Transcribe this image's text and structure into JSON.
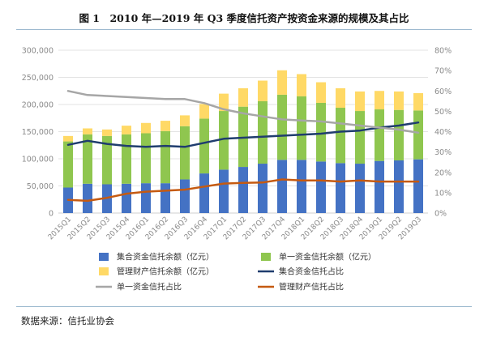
{
  "title": "图 1　2010 年—2019 年 Q3 季度信托资产按资金来源的规模及其占比",
  "source": "数据来源：信托业协会",
  "colors": {
    "collective": "#4472c4",
    "single": "#8fc64f",
    "management": "#ffd966",
    "collective_line": "#1f3d6e",
    "single_line": "#a6a6a6",
    "management_line": "#c55a11",
    "grid": "#e3e3e3"
  },
  "chart_data": {
    "type": "bar",
    "stacked": true,
    "categories": [
      "2015Q1",
      "2015Q2",
      "2015Q3",
      "2015Q4",
      "2016Q1",
      "2016Q2",
      "2016Q3",
      "2016Q4",
      "2017Q1",
      "2017Q2",
      "2017Q3",
      "2017Q4",
      "2018Q1",
      "2018Q2",
      "2018Q3",
      "2018Q4",
      "2019Q1",
      "2019Q2",
      "2019Q3"
    ],
    "ylim_left": [
      0,
      300000
    ],
    "left_ticks": [
      "0",
      "50,000",
      "100,000",
      "150,000",
      "200,000",
      "250,000",
      "300,000"
    ],
    "ylim_right": [
      0,
      80
    ],
    "right_ticks": [
      "0%",
      "10%",
      "20%",
      "30%",
      "40%",
      "50%",
      "60%",
      "70%",
      "80%"
    ],
    "series": [
      {
        "name": "集合资金信托余额（亿元）",
        "kind": "bar",
        "axis": "left",
        "color": "collective",
        "values": [
          47000,
          54000,
          53000,
          54000,
          55000,
          55000,
          62000,
          73000,
          80000,
          85000,
          91000,
          98000,
          98000,
          95000,
          92000,
          91000,
          96000,
          97000,
          99000
        ]
      },
      {
        "name": "单一资金信托余额（亿元）",
        "kind": "bar",
        "axis": "left",
        "color": "single",
        "values": [
          85000,
          91000,
          89000,
          91000,
          92000,
          96000,
          98000,
          101000,
          108000,
          111000,
          115000,
          120000,
          117000,
          108000,
          102000,
          97000,
          95000,
          93000,
          90000
        ]
      },
      {
        "name": "管理财产信托余额（亿元）",
        "kind": "bar",
        "axis": "left",
        "color": "management",
        "values": [
          10000,
          11000,
          12000,
          16000,
          19000,
          19000,
          20000,
          27000,
          32000,
          34000,
          38000,
          45000,
          41000,
          38000,
          36000,
          36000,
          34000,
          34000,
          32000
        ]
      },
      {
        "name": "集合资金信托占比",
        "kind": "line",
        "axis": "right",
        "color": "collective_line",
        "values": [
          33.5,
          35.5,
          34,
          33,
          32.5,
          33,
          32.5,
          34.5,
          36.5,
          37,
          37.5,
          38,
          38.5,
          39,
          40,
          40.5,
          42,
          43,
          44.5
        ]
      },
      {
        "name": "单一资金信托占比",
        "kind": "line",
        "axis": "right",
        "color": "single_line",
        "values": [
          60,
          58,
          57.5,
          57,
          56.5,
          56,
          56,
          54,
          51,
          49,
          47.5,
          46,
          45.5,
          45,
          44,
          43,
          42,
          41,
          39.5
        ]
      },
      {
        "name": "管理财产信托占比",
        "kind": "line",
        "axis": "right",
        "color": "management_line",
        "values": [
          6.5,
          6,
          7.5,
          9.5,
          10.5,
          11,
          11.5,
          13,
          14.5,
          14.8,
          15,
          16.5,
          16,
          16,
          15.5,
          16,
          15.5,
          15.5,
          15.5
        ]
      }
    ],
    "legend_position": "bottom"
  }
}
